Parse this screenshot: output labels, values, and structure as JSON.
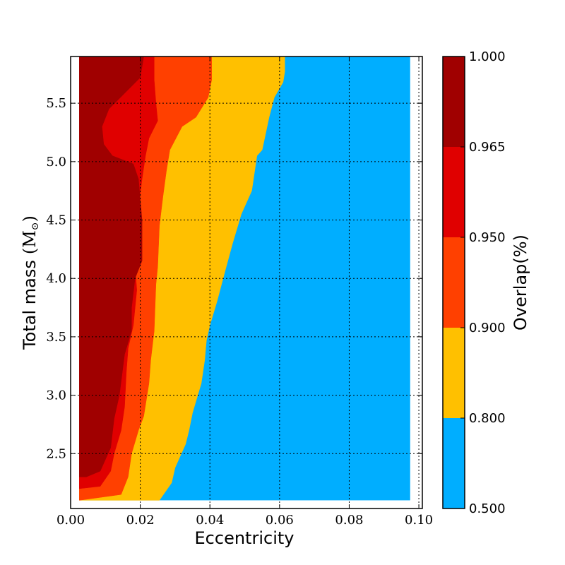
{
  "chart_data": {
    "type": "contour",
    "xlabel": "Eccentricity",
    "ylabel": "Total mass",
    "ylabel_unit": "(M",
    "ylabel_unit_sub": "⊙",
    "ylabel_unit_close": ")",
    "xlim": [
      0.0,
      0.101
    ],
    "ylim": [
      2.03,
      5.9
    ],
    "x_ticks": [
      0.0,
      0.02,
      0.04,
      0.06,
      0.08,
      0.1
    ],
    "x_tick_labels": [
      "0.00",
      "0.02",
      "0.04",
      "0.06",
      "0.08",
      "0.10"
    ],
    "y_ticks": [
      2.5,
      3.0,
      3.5,
      4.0,
      4.5,
      5.0,
      5.5
    ],
    "y_tick_labels": [
      "2.5",
      "3.0",
      "3.5",
      "4.0",
      "4.5",
      "5.0",
      "5.5"
    ],
    "grid": true,
    "data_extent": {
      "x": [
        0.0025,
        0.0975
      ],
      "y": [
        2.1,
        5.9
      ]
    },
    "colorbar": {
      "label": "Overlap(%)",
      "levels": [
        0.5,
        0.8,
        0.9,
        0.95,
        0.965,
        1.0
      ],
      "level_labels": [
        "0.500",
        "0.800",
        "0.900",
        "0.950",
        "0.965",
        "1.000"
      ],
      "colors": [
        "#00aeff",
        "#ffc000",
        "#ff4000",
        "#e00000",
        "#a00000"
      ]
    },
    "regions": [
      {
        "range": [
          0.8,
          0.9
        ],
        "color": "#ffc000",
        "boundary": [
          [
            0.0025,
            5.9
          ],
          [
            0.0615,
            5.9
          ],
          [
            0.0615,
            5.77
          ],
          [
            0.061,
            5.68
          ],
          [
            0.0585,
            5.55
          ],
          [
            0.057,
            5.38
          ],
          [
            0.055,
            5.1
          ],
          [
            0.0535,
            5.05
          ],
          [
            0.052,
            4.75
          ],
          [
            0.049,
            4.55
          ],
          [
            0.0465,
            4.3
          ],
          [
            0.0445,
            4.08
          ],
          [
            0.042,
            3.8
          ],
          [
            0.04,
            3.6
          ],
          [
            0.039,
            3.47
          ],
          [
            0.0385,
            3.3
          ],
          [
            0.0375,
            3.1
          ],
          [
            0.035,
            2.85
          ],
          [
            0.034,
            2.7
          ],
          [
            0.033,
            2.58
          ],
          [
            0.03,
            2.38
          ],
          [
            0.029,
            2.25
          ],
          [
            0.0255,
            2.1
          ],
          [
            0.0025,
            2.1
          ]
        ]
      },
      {
        "range": [
          0.9,
          0.95
        ],
        "color": "#ff4000",
        "boundary": [
          [
            0.0025,
            5.9
          ],
          [
            0.0405,
            5.9
          ],
          [
            0.0405,
            5.7
          ],
          [
            0.0395,
            5.55
          ],
          [
            0.036,
            5.38
          ],
          [
            0.032,
            5.3
          ],
          [
            0.0285,
            5.1
          ],
          [
            0.0275,
            4.92
          ],
          [
            0.0265,
            4.7
          ],
          [
            0.0255,
            4.45
          ],
          [
            0.025,
            4.1
          ],
          [
            0.0245,
            3.95
          ],
          [
            0.024,
            3.55
          ],
          [
            0.023,
            3.3
          ],
          [
            0.0225,
            3.1
          ],
          [
            0.021,
            2.82
          ],
          [
            0.0195,
            2.7
          ],
          [
            0.0175,
            2.5
          ],
          [
            0.0165,
            2.3
          ],
          [
            0.0145,
            2.15
          ],
          [
            0.0025,
            2.1
          ]
        ]
      },
      {
        "range": [
          0.95,
          0.965
        ],
        "color": "#e00000",
        "boundary": [
          [
            0.0025,
            5.9
          ],
          [
            0.024,
            5.9
          ],
          [
            0.024,
            5.7
          ],
          [
            0.0245,
            5.5
          ],
          [
            0.025,
            5.35
          ],
          [
            0.0225,
            5.2
          ],
          [
            0.0215,
            5.05
          ],
          [
            0.0205,
            4.85
          ],
          [
            0.0195,
            4.6
          ],
          [
            0.019,
            4.3
          ],
          [
            0.0185,
            4.1
          ],
          [
            0.019,
            3.9
          ],
          [
            0.018,
            3.6
          ],
          [
            0.0165,
            3.4
          ],
          [
            0.016,
            3.2
          ],
          [
            0.0155,
            2.9
          ],
          [
            0.0145,
            2.7
          ],
          [
            0.0125,
            2.5
          ],
          [
            0.0115,
            2.35
          ],
          [
            0.0085,
            2.22
          ],
          [
            0.0025,
            2.2
          ]
        ]
      },
      {
        "range": [
          0.965,
          1.0
        ],
        "color": "#a00000",
        "boundary": [
          [
            0.0025,
            5.9
          ],
          [
            0.021,
            5.9
          ],
          [
            0.02,
            5.72
          ],
          [
            0.016,
            5.6
          ],
          [
            0.011,
            5.45
          ],
          [
            0.009,
            5.3
          ],
          [
            0.0095,
            5.15
          ],
          [
            0.012,
            5.05
          ],
          [
            0.018,
            4.98
          ],
          [
            0.0195,
            4.85
          ],
          [
            0.0205,
            4.5
          ],
          [
            0.0205,
            4.15
          ],
          [
            0.0185,
            4.0
          ],
          [
            0.0175,
            3.75
          ],
          [
            0.0175,
            3.55
          ],
          [
            0.0155,
            3.35
          ],
          [
            0.014,
            3.0
          ],
          [
            0.0125,
            2.8
          ],
          [
            0.0115,
            2.55
          ],
          [
            0.0085,
            2.35
          ],
          [
            0.0045,
            2.3
          ],
          [
            0.0025,
            2.3
          ]
        ]
      }
    ]
  }
}
